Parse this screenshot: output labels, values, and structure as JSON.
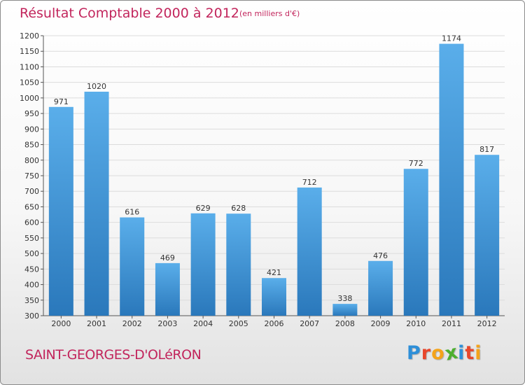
{
  "header": {
    "title": "Résultat Comptable 2000 à 2012",
    "subtitle": "(en milliers d'€)"
  },
  "footer": {
    "commune": "SAINT-GEORGES-D'OLéRON",
    "logo_letters": [
      {
        "ch": "P",
        "color": "#2e8fd8"
      },
      {
        "ch": "r",
        "color": "#e8462b"
      },
      {
        "ch": "o",
        "color": "#f4a31a"
      },
      {
        "ch": "x",
        "color": "#4caf2e"
      },
      {
        "ch": "i",
        "color": "#2e8fd8"
      },
      {
        "ch": "t",
        "color": "#e8462b"
      },
      {
        "ch": "i",
        "color": "#f4a31a"
      }
    ]
  },
  "colors": {
    "accent": "#c2255c",
    "bar_top": "#5aaeea",
    "bar_bottom": "#2a78bb"
  },
  "chart_data": {
    "type": "bar",
    "title": "Résultat Comptable 2000 à 2012",
    "xlabel": "",
    "ylabel": "",
    "categories": [
      "2000",
      "2001",
      "2002",
      "2003",
      "2004",
      "2005",
      "2006",
      "2007",
      "2008",
      "2009",
      "2010",
      "2011",
      "2012"
    ],
    "values": [
      971,
      1020,
      616,
      469,
      629,
      628,
      421,
      712,
      338,
      476,
      772,
      1174,
      817
    ],
    "ylim": [
      300,
      1200
    ],
    "yticks": [
      300,
      350,
      400,
      450,
      500,
      550,
      600,
      650,
      700,
      750,
      800,
      850,
      900,
      950,
      1000,
      1050,
      1100,
      1150,
      1200
    ],
    "grid": true,
    "legend": "none"
  }
}
